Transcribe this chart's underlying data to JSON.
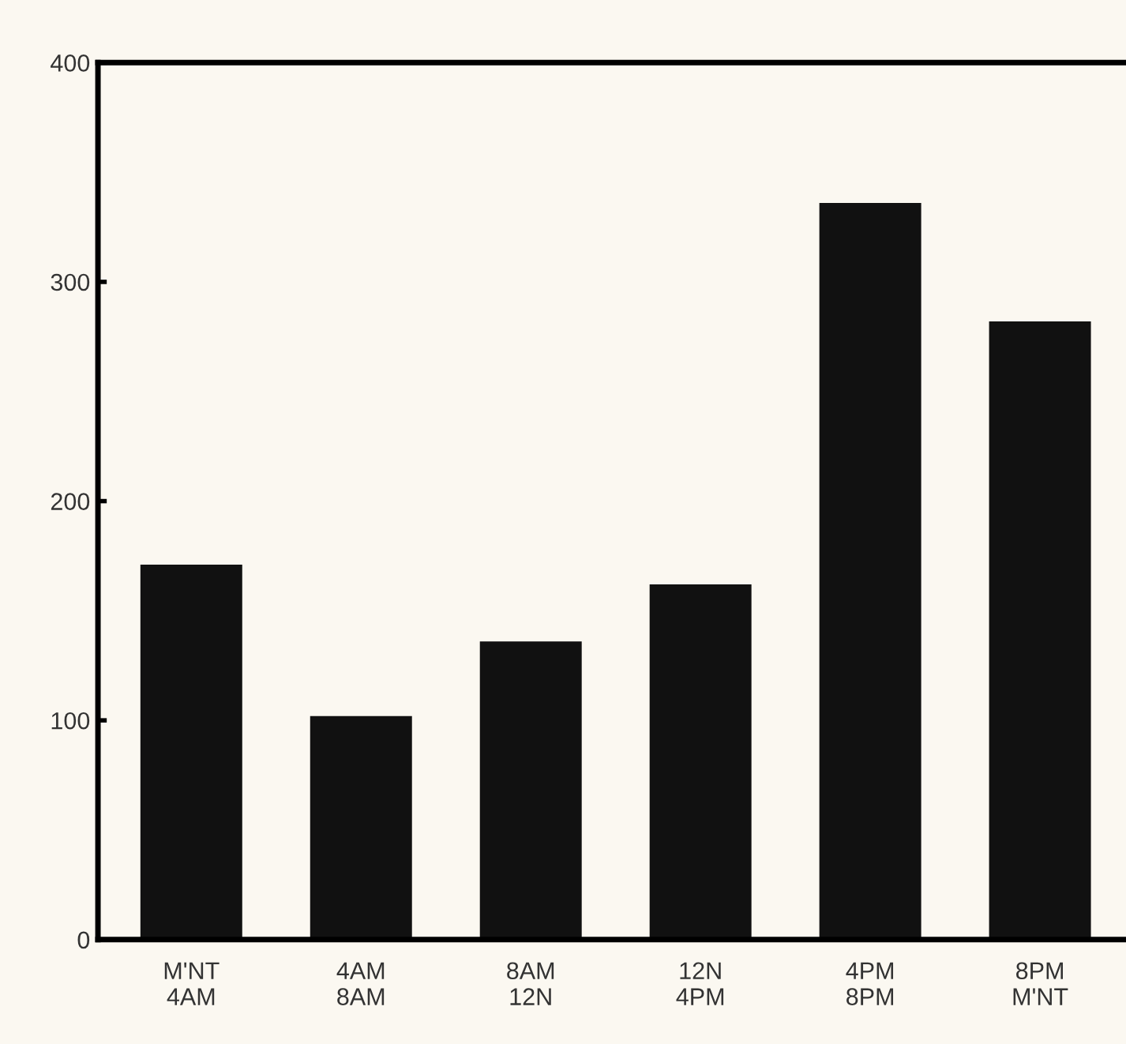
{
  "chart_data": {
    "type": "bar",
    "categories": [
      "M'NT\n4AM",
      "4AM\n8AM",
      "8AM\n12N",
      "12N\n4PM",
      "4PM\n8PM",
      "8PM\nM'NT"
    ],
    "values": [
      171,
      102,
      136,
      162,
      336,
      282
    ],
    "color": "#111111",
    "ylim": [
      0,
      400
    ],
    "yticks": [
      0,
      100,
      200,
      300,
      400
    ],
    "grid": false,
    "legend": false
  }
}
